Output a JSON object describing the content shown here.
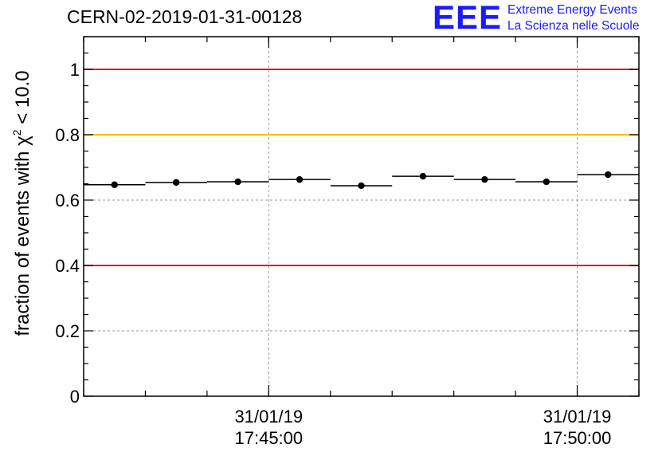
{
  "header": {
    "title": "CERN-02-2019-01-31-00128",
    "logo_mark": "EEE",
    "logo_line1": "Extreme Energy Events",
    "logo_line2": "La Scienza nelle Scuole"
  },
  "chart_data": {
    "type": "scatter",
    "ylabel_prefix": "fraction of events with ",
    "ylabel_symbol": "χ",
    "ylabel_sup": "2",
    "ylabel_suffix": " < 10.0",
    "xlabel": "",
    "ylim": [
      0,
      1.1
    ],
    "xlim": [
      "17:42:00",
      "17:51:00"
    ],
    "yticks": [
      0,
      0.2,
      0.4,
      0.6,
      0.8,
      1
    ],
    "ytick_labels": [
      "0",
      "0.2",
      "0.4",
      "0.6",
      "0.8",
      "1"
    ],
    "xticks": [
      {
        "time": "17:45:00",
        "date_label": "31/01/19",
        "time_label": "17:45:00"
      },
      {
        "time": "17:50:00",
        "date_label": "31/01/19",
        "time_label": "17:50:00"
      }
    ],
    "grid": true,
    "reference_lines": [
      {
        "y": 1.0,
        "color": "#e31a1c"
      },
      {
        "y": 0.8,
        "color": "#ffc000"
      },
      {
        "y": 0.4,
        "color": "#e31a1c"
      }
    ],
    "series": [
      {
        "points": [
          {
            "start": "17:42:00",
            "end": "17:43:00",
            "y": 0.647
          },
          {
            "start": "17:43:00",
            "end": "17:44:00",
            "y": 0.654
          },
          {
            "start": "17:44:00",
            "end": "17:45:00",
            "y": 0.656
          },
          {
            "start": "17:45:00",
            "end": "17:46:00",
            "y": 0.663
          },
          {
            "start": "17:46:00",
            "end": "17:47:00",
            "y": 0.644
          },
          {
            "start": "17:47:00",
            "end": "17:48:00",
            "y": 0.673
          },
          {
            "start": "17:48:00",
            "end": "17:49:00",
            "y": 0.663
          },
          {
            "start": "17:49:00",
            "end": "17:50:00",
            "y": 0.656
          },
          {
            "start": "17:50:00",
            "end": "17:51:00",
            "y": 0.678
          }
        ]
      }
    ]
  }
}
